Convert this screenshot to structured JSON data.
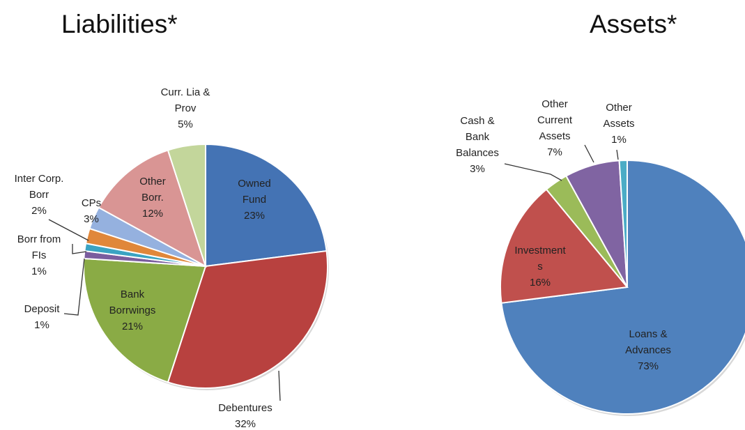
{
  "chart_data": [
    {
      "type": "pie",
      "title": "Liabilities*",
      "slices": [
        {
          "label": [
            "Owned",
            "Fund"
          ],
          "pct_text": "23%",
          "value": 23,
          "color": "#4473b4"
        },
        {
          "label": [
            "Debentures"
          ],
          "pct_text": "32%",
          "value": 32,
          "color": "#b8413f"
        },
        {
          "label": [
            "Bank",
            "Borrwings"
          ],
          "pct_text": "21%",
          "value": 21,
          "color": "#8aab45"
        },
        {
          "label": [
            "Deposit"
          ],
          "pct_text": "1%",
          "value": 1,
          "color": "#7a5d9e"
        },
        {
          "label": [
            "Borr from",
            "FIs"
          ],
          "pct_text": "1%",
          "value": 1,
          "color": "#3aa3c2"
        },
        {
          "label": [
            "Inter Corp.",
            "Borr"
          ],
          "pct_text": "2%",
          "value": 2,
          "color": "#e0873a"
        },
        {
          "label": [
            "CPs"
          ],
          "pct_text": "3%",
          "value": 3,
          "color": "#95b1df"
        },
        {
          "label": [
            "Other",
            "Borr."
          ],
          "pct_text": "12%",
          "value": 12,
          "color": "#d99594"
        },
        {
          "label": [
            "Curr. Lia &",
            "Prov"
          ],
          "pct_text": "5%",
          "value": 5,
          "color": "#c3d69b"
        }
      ]
    },
    {
      "type": "pie",
      "title": "Assets*",
      "slices": [
        {
          "label": [
            "Loans  &",
            "Advances"
          ],
          "pct_text": "73%",
          "value": 73,
          "color": "#4f81bd"
        },
        {
          "label": [
            "Investment",
            "s"
          ],
          "pct_text": "16%",
          "value": 16,
          "color": "#c0504d"
        },
        {
          "label": [
            "Cash &",
            "Bank",
            "Balances"
          ],
          "pct_text": "3%",
          "value": 3,
          "color": "#9bbb59"
        },
        {
          "label": [
            "Other",
            "Current",
            "Assets"
          ],
          "pct_text": "7%",
          "value": 7,
          "color": "#8064a2"
        },
        {
          "label": [
            "Other",
            "Assets"
          ],
          "pct_text": "1%",
          "value": 1,
          "color": "#4bacc6"
        }
      ]
    }
  ]
}
